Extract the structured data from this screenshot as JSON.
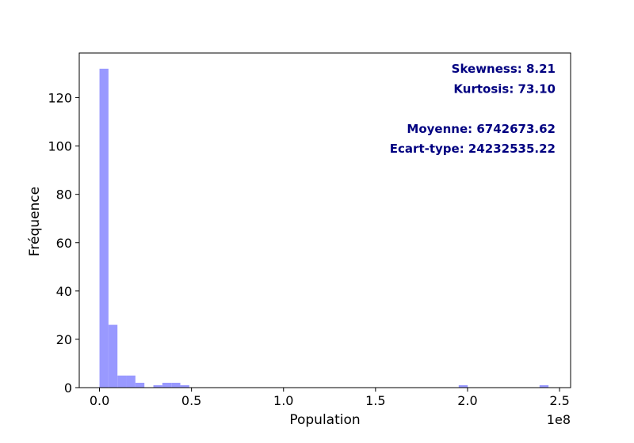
{
  "chart_data": {
    "type": "bar",
    "xlabel": "Population",
    "ylabel": "Fréquence",
    "x_offset_label": "1e8",
    "xlim": [
      -11000000,
      256000000
    ],
    "ylim": [
      0,
      138.5
    ],
    "x_ticks": [
      0,
      50000000,
      100000000,
      150000000,
      200000000,
      250000000
    ],
    "x_tick_labels": [
      "0.0",
      "0.5",
      "1.0",
      "1.5",
      "2.0",
      "2.5"
    ],
    "y_ticks": [
      0,
      20,
      40,
      60,
      80,
      100,
      120
    ],
    "y_tick_labels": [
      "0",
      "20",
      "40",
      "60",
      "80",
      "100",
      "120"
    ],
    "bin_width": 4880000,
    "bins": [
      {
        "x0": 0,
        "count": 132
      },
      {
        "x0": 4880000,
        "count": 26
      },
      {
        "x0": 9760000,
        "count": 5
      },
      {
        "x0": 14640000,
        "count": 5
      },
      {
        "x0": 19520000,
        "count": 2
      },
      {
        "x0": 29280000,
        "count": 1
      },
      {
        "x0": 34160000,
        "count": 2
      },
      {
        "x0": 39040000,
        "count": 2
      },
      {
        "x0": 43920000,
        "count": 1
      },
      {
        "x0": 195200000,
        "count": 1
      },
      {
        "x0": 239120000,
        "count": 1
      }
    ],
    "bar_color": "#9999ff",
    "grid": false,
    "annotations": {
      "color": "#000080",
      "lines": [
        "Skewness: 8.21",
        "Kurtosis: 73.10",
        "",
        "Moyenne: 6742673.62",
        "Ecart-type: 24232535.22"
      ]
    }
  }
}
